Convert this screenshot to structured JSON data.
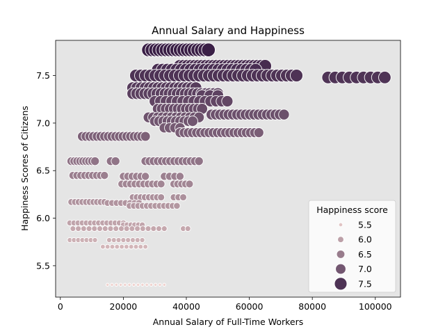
{
  "chart_data": {
    "type": "scatter",
    "title": "Annual Salary and Happiness",
    "xlabel": "Annual Salary of Full-Time Workers",
    "ylabel": "Happiness Scores of Citizens",
    "xlim": [
      -1500,
      108000
    ],
    "ylim": [
      5.17,
      7.87
    ],
    "xticks": [
      0,
      20000,
      40000,
      60000,
      80000,
      100000
    ],
    "yticks": [
      5.5,
      6.0,
      6.5,
      7.0,
      7.5
    ],
    "background": "#e5e5e5",
    "grid": false,
    "legend": {
      "title": "Happiness score",
      "placement": "lower-right",
      "entries": [
        {
          "label": "5.5",
          "value": 5.5
        },
        {
          "label": "6.0",
          "value": 6.0
        },
        {
          "label": "6.5",
          "value": 6.5
        },
        {
          "label": "7.0",
          "value": 7.0
        },
        {
          "label": "7.5",
          "value": 7.5
        }
      ]
    },
    "hue_range": [
      5.3,
      7.77
    ],
    "color_low": "#f0d3cf",
    "color_high": "#3a1f46",
    "clusters": [
      {
        "y": 7.77,
        "x_from": 28000,
        "x_to": 47000,
        "n": 18
      },
      {
        "y": 7.6,
        "x_from": 38000,
        "x_to": 65000,
        "n": 24
      },
      {
        "y": 7.56,
        "x_from": 31000,
        "x_to": 62000,
        "n": 22
      },
      {
        "y": 7.5,
        "x_from": 24000,
        "x_to": 75000,
        "n": 34
      },
      {
        "y": 7.48,
        "x_from": 85000,
        "x_to": 103000,
        "n": 9
      },
      {
        "y": 7.37,
        "x_from": 23000,
        "x_to": 43000,
        "n": 16
      },
      {
        "y": 7.31,
        "x_from": 23000,
        "x_to": 50000,
        "n": 22
      },
      {
        "y": 7.29,
        "x_from": 45000,
        "x_to": 50000,
        "n": 3
      },
      {
        "y": 7.23,
        "x_from": 30000,
        "x_to": 53000,
        "n": 14
      },
      {
        "y": 7.15,
        "x_from": 31000,
        "x_to": 45000,
        "n": 12
      },
      {
        "y": 7.09,
        "x_from": 48000,
        "x_to": 71000,
        "n": 18
      },
      {
        "y": 7.06,
        "x_from": 28000,
        "x_to": 44000,
        "n": 12
      },
      {
        "y": 7.02,
        "x_from": 30000,
        "x_to": 42000,
        "n": 10
      },
      {
        "y": 6.95,
        "x_from": 33000,
        "x_to": 38000,
        "n": 4
      },
      {
        "y": 6.9,
        "x_from": 38000,
        "x_to": 63000,
        "n": 20
      },
      {
        "y": 6.86,
        "x_from": 7000,
        "x_to": 27000,
        "n": 18
      },
      {
        "y": 6.6,
        "x_from": 3500,
        "x_to": 11000,
        "n": 9
      },
      {
        "y": 6.6,
        "x_from": 16000,
        "x_to": 17500,
        "n": 2
      },
      {
        "y": 6.6,
        "x_from": 27000,
        "x_to": 44000,
        "n": 14
      },
      {
        "y": 6.45,
        "x_from": 4000,
        "x_to": 14000,
        "n": 9
      },
      {
        "y": 6.44,
        "x_from": 20000,
        "x_to": 27000,
        "n": 6
      },
      {
        "y": 6.44,
        "x_from": 33000,
        "x_to": 38000,
        "n": 4
      },
      {
        "y": 6.36,
        "x_from": 19500,
        "x_to": 32000,
        "n": 10
      },
      {
        "y": 6.36,
        "x_from": 36000,
        "x_to": 41000,
        "n": 5
      },
      {
        "y": 6.22,
        "x_from": 23000,
        "x_to": 32000,
        "n": 8
      },
      {
        "y": 6.22,
        "x_from": 36000,
        "x_to": 39000,
        "n": 3
      },
      {
        "y": 6.17,
        "x_from": 3500,
        "x_to": 14000,
        "n": 10
      },
      {
        "y": 6.16,
        "x_from": 15000,
        "x_to": 25000,
        "n": 8
      },
      {
        "y": 6.13,
        "x_from": 22000,
        "x_to": 37000,
        "n": 12
      },
      {
        "y": 5.95,
        "x_from": 3000,
        "x_to": 20000,
        "n": 14
      },
      {
        "y": 5.93,
        "x_from": 20000,
        "x_to": 26000,
        "n": 6
      },
      {
        "y": 5.89,
        "x_from": 4000,
        "x_to": 33000,
        "n": 18
      },
      {
        "y": 5.89,
        "x_from": 39000,
        "x_to": 40500,
        "n": 2
      },
      {
        "y": 5.77,
        "x_from": 3000,
        "x_to": 11000,
        "n": 7
      },
      {
        "y": 5.77,
        "x_from": 15500,
        "x_to": 26000,
        "n": 8
      },
      {
        "y": 5.7,
        "x_from": 13500,
        "x_to": 27000,
        "n": 10
      },
      {
        "y": 5.3,
        "x_from": 15000,
        "x_to": 33000,
        "n": 14
      }
    ]
  }
}
